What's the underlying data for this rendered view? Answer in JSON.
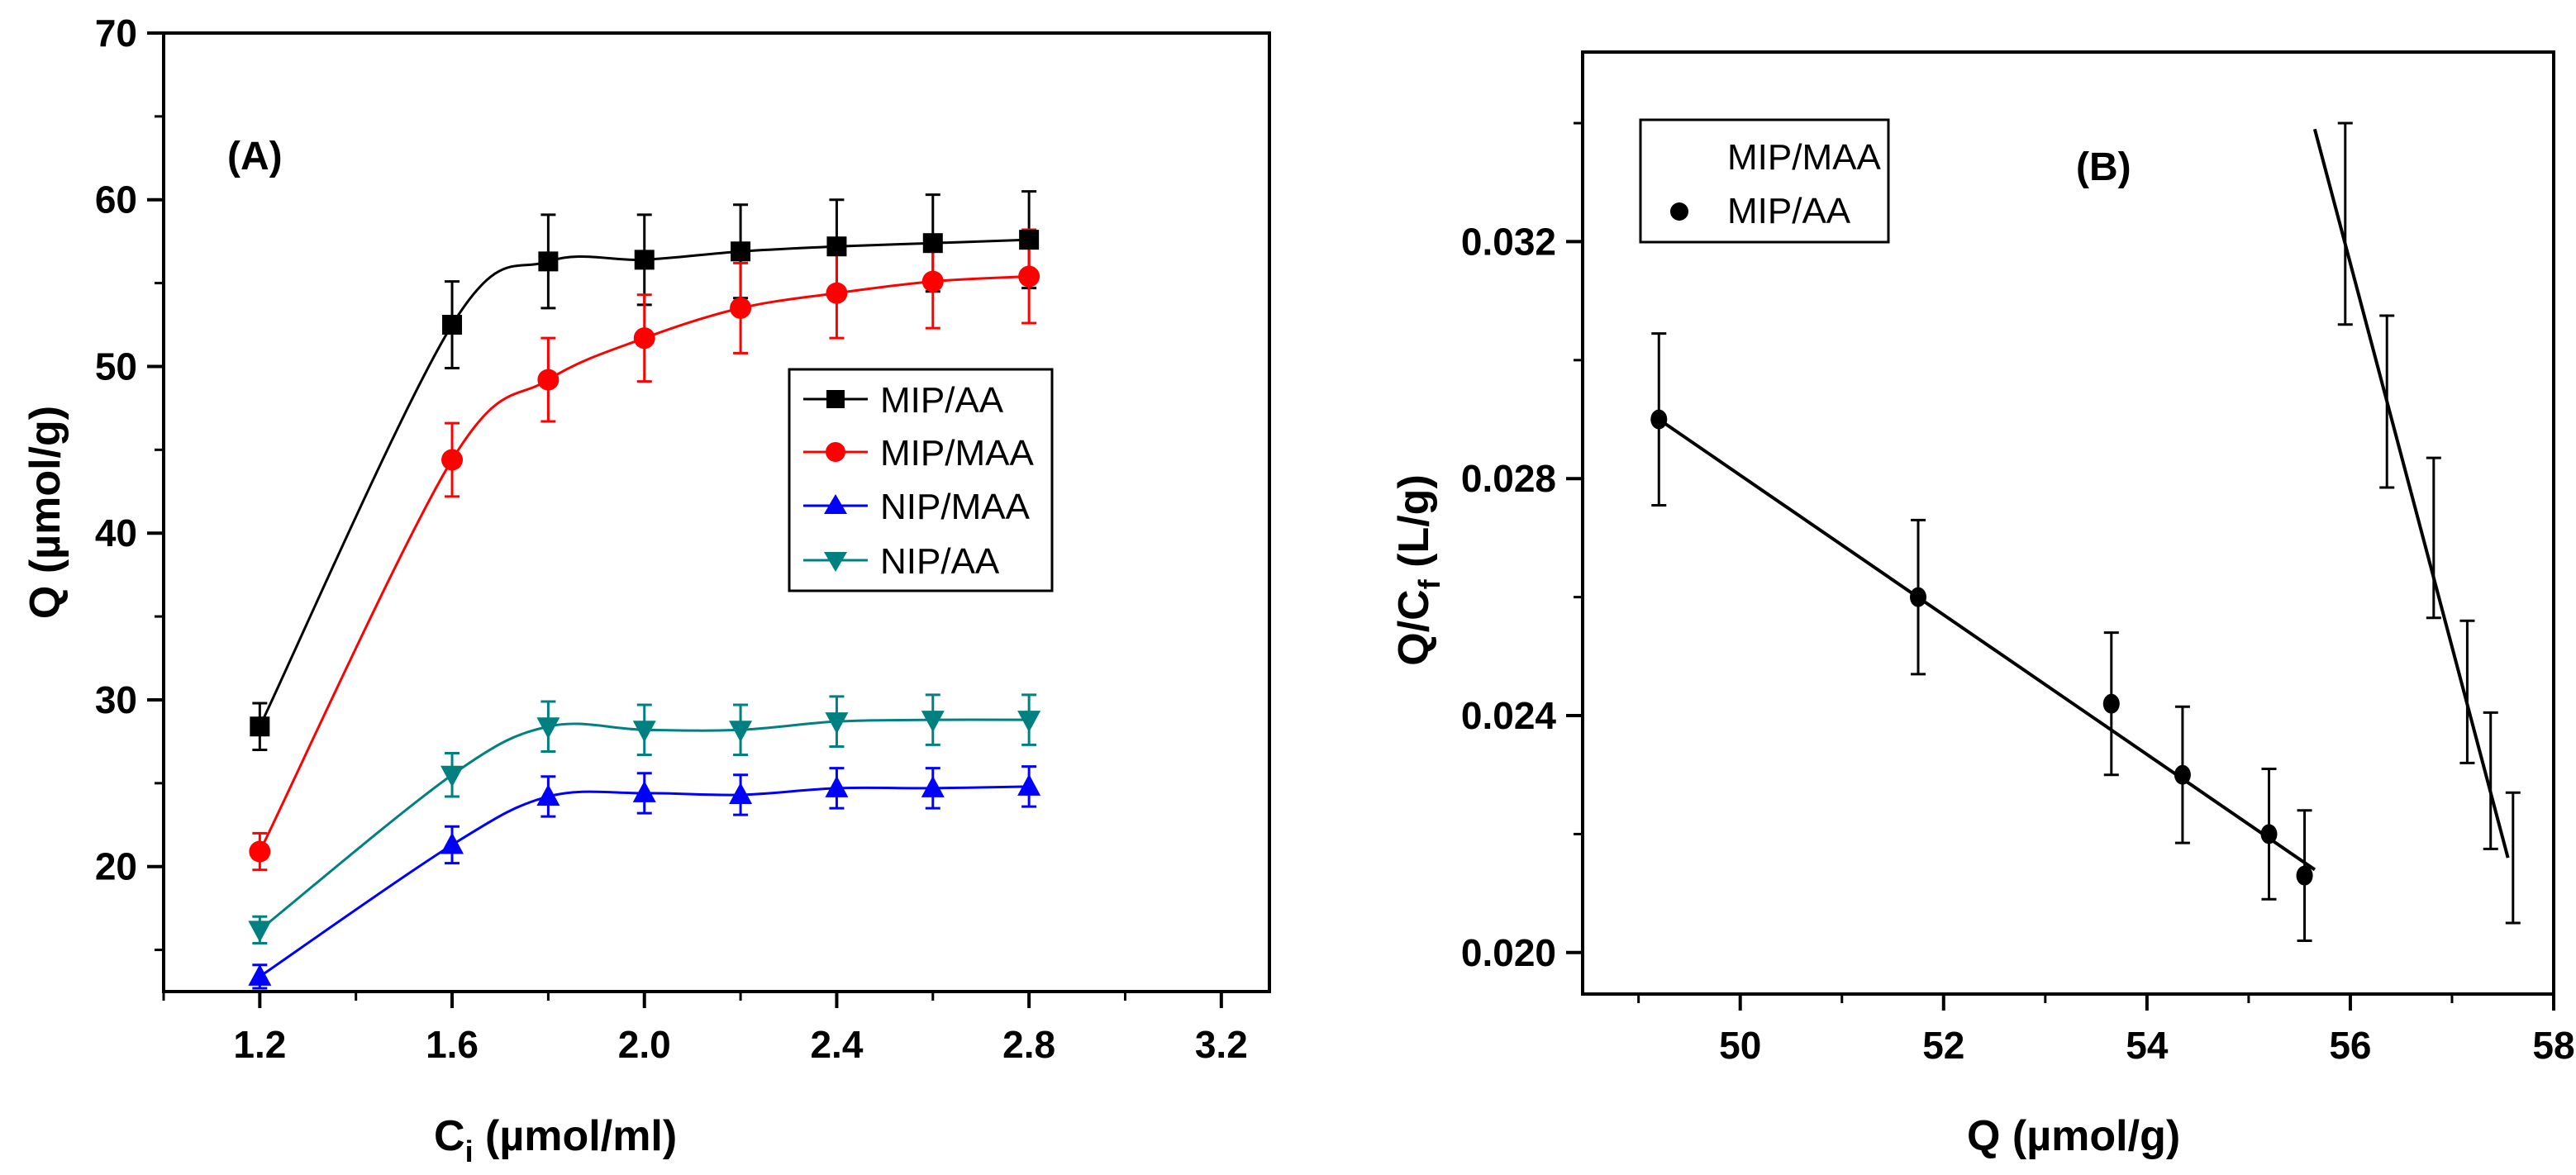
{
  "chart_data": [
    {
      "id": "A",
      "type": "line",
      "panel_label": "(A)",
      "xlabel": {
        "main": "C",
        "sub": "i",
        "rest": " (µmol/ml)"
      },
      "ylabel": "Q (µmol/g)",
      "xlim": [
        1.0,
        3.3
      ],
      "ylim": [
        12.5,
        70
      ],
      "xticks": [
        1.2,
        1.6,
        2.0,
        2.4,
        2.8,
        3.2
      ],
      "xtick_labels": [
        "1.2",
        "1.6",
        "2.0",
        "2.4",
        "2.8",
        "3.2"
      ],
      "yticks": [
        20,
        30,
        40,
        50,
        60,
        70
      ],
      "ytick_labels": [
        "20",
        "30",
        "40",
        "50",
        "60",
        "70"
      ],
      "legend_position": "center-right",
      "x": [
        1.2,
        1.6,
        1.8,
        2.0,
        2.2,
        2.4,
        2.6,
        2.8
      ],
      "series": [
        {
          "name": "MIP/AA",
          "color": "#000000",
          "marker": "square",
          "values": [
            28.4,
            52.5,
            56.3,
            56.4,
            56.9,
            57.2,
            57.4,
            57.6
          ],
          "errors": [
            1.4,
            2.6,
            2.8,
            2.7,
            2.8,
            2.8,
            2.9,
            2.9
          ]
        },
        {
          "name": "MIP/MAA",
          "color": "#ff0000",
          "marker": "circle",
          "values": [
            20.9,
            44.4,
            49.2,
            51.7,
            53.5,
            54.4,
            55.1,
            55.4
          ],
          "errors": [
            1.1,
            2.2,
            2.5,
            2.6,
            2.7,
            2.7,
            2.8,
            2.8
          ]
        },
        {
          "name": "NIP/MAA",
          "color": "#0000ff",
          "marker": "triangle-up",
          "values": [
            13.4,
            21.3,
            24.2,
            24.4,
            24.3,
            24.7,
            24.7,
            24.8
          ],
          "errors": [
            0.7,
            1.1,
            1.2,
            1.2,
            1.2,
            1.2,
            1.2,
            1.2
          ]
        },
        {
          "name": "NIP/AA",
          "color": "#008080",
          "marker": "triangle-down",
          "values": [
            16.2,
            25.5,
            28.4,
            28.2,
            28.2,
            28.7,
            28.8,
            28.8
          ],
          "errors": [
            0.8,
            1.3,
            1.5,
            1.5,
            1.5,
            1.5,
            1.5,
            1.5
          ]
        }
      ]
    },
    {
      "id": "B",
      "type": "scatter",
      "panel_label": "(B)",
      "xlabel": "Q (µmol/g)",
      "ylabel": {
        "main": "Q/C",
        "sub": "f",
        "rest": " (L/g)"
      },
      "xlim": [
        48.45,
        58.0
      ],
      "ylim": [
        0.0193,
        0.0352
      ],
      "xticks": [
        50,
        52,
        54,
        56,
        58
      ],
      "xtick_labels": [
        "50",
        "52",
        "54",
        "56",
        "58"
      ],
      "yticks": [
        0.02,
        0.024,
        0.028,
        0.032
      ],
      "ytick_labels": [
        "0.020",
        "0.024",
        "0.028",
        "0.032"
      ],
      "legend_position": "top-left",
      "series": [
        {
          "name": "MIP/MAA",
          "marker": "none",
          "points": [
            {
              "x": 55.95,
              "y": 0.0323,
              "err": 0.0017
            },
            {
              "x": 56.36,
              "y": 0.0293,
              "err": 0.00145
            },
            {
              "x": 56.82,
              "y": 0.027,
              "err": 0.00135
            },
            {
              "x": 57.15,
              "y": 0.0244,
              "err": 0.0012
            },
            {
              "x": 57.38,
              "y": 0.0229,
              "err": 0.00115
            },
            {
              "x": 57.6,
              "y": 0.0216,
              "err": 0.0011
            }
          ],
          "fit": {
            "x": [
              55.65,
              57.55
            ],
            "y": [
              0.0339,
              0.0216
            ]
          }
        },
        {
          "name": "MIP/AA",
          "marker": "circle",
          "points": [
            {
              "x": 49.2,
              "y": 0.029,
              "err": 0.00145
            },
            {
              "x": 51.75,
              "y": 0.026,
              "err": 0.0013
            },
            {
              "x": 53.65,
              "y": 0.0242,
              "err": 0.0012
            },
            {
              "x": 54.35,
              "y": 0.023,
              "err": 0.00115
            },
            {
              "x": 55.2,
              "y": 0.022,
              "err": 0.0011
            },
            {
              "x": 55.55,
              "y": 0.0213,
              "err": 0.0011
            }
          ],
          "fit": {
            "x": [
              49.2,
              55.65
            ],
            "y": [
              0.029,
              0.0214
            ]
          }
        }
      ]
    }
  ]
}
